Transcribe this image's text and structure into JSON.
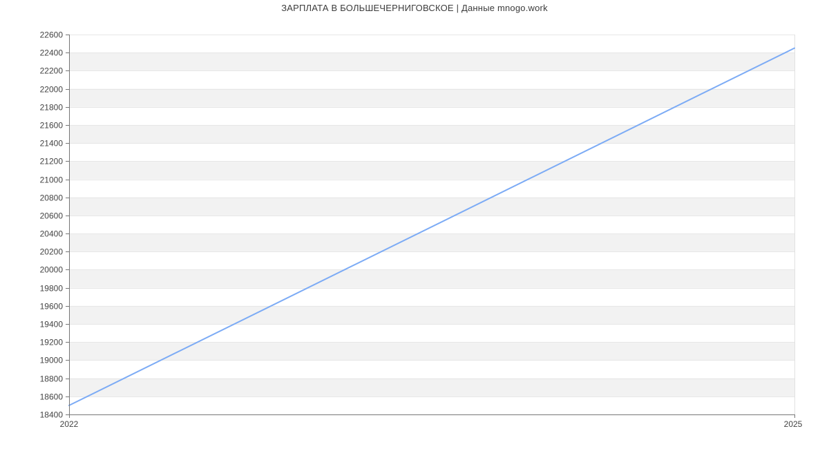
{
  "title": "ЗАРПЛАТА В БОЛЬШЕЧЕРНИГОВСКОЕ | Данные mnogo.work",
  "colors": {
    "background": "#ffffff",
    "line": "#7cabf5",
    "band_fill": "#f2f2f2",
    "grid_line": "#e6e6e6",
    "plot_border": "#e0e0e0",
    "axis_line": "#757575",
    "tick_text": "#434343",
    "title_text": "#3b3b3b"
  },
  "chart_data": {
    "type": "line",
    "title": "ЗАРПЛАТА В БОЛЬШЕЧЕРНИГОВСКОЕ | Данные mnogo.work",
    "x": [
      2022,
      2025
    ],
    "series": [
      {
        "values": [
          18500,
          22450
        ]
      }
    ],
    "xtick_labels": [
      "2022",
      "2025"
    ],
    "ytick_labels": [
      "18400",
      "18600",
      "18800",
      "19000",
      "19200",
      "19400",
      "19600",
      "19800",
      "20000",
      "20200",
      "20400",
      "20600",
      "20800",
      "21000",
      "21200",
      "21400",
      "21600",
      "21800",
      "22000",
      "22200",
      "22400",
      "22600"
    ],
    "ylim": [
      18400,
      22600
    ],
    "ytick_step": 200,
    "xlabel": "",
    "ylabel": "",
    "legend": "none",
    "grid": true,
    "banded_background": true
  }
}
